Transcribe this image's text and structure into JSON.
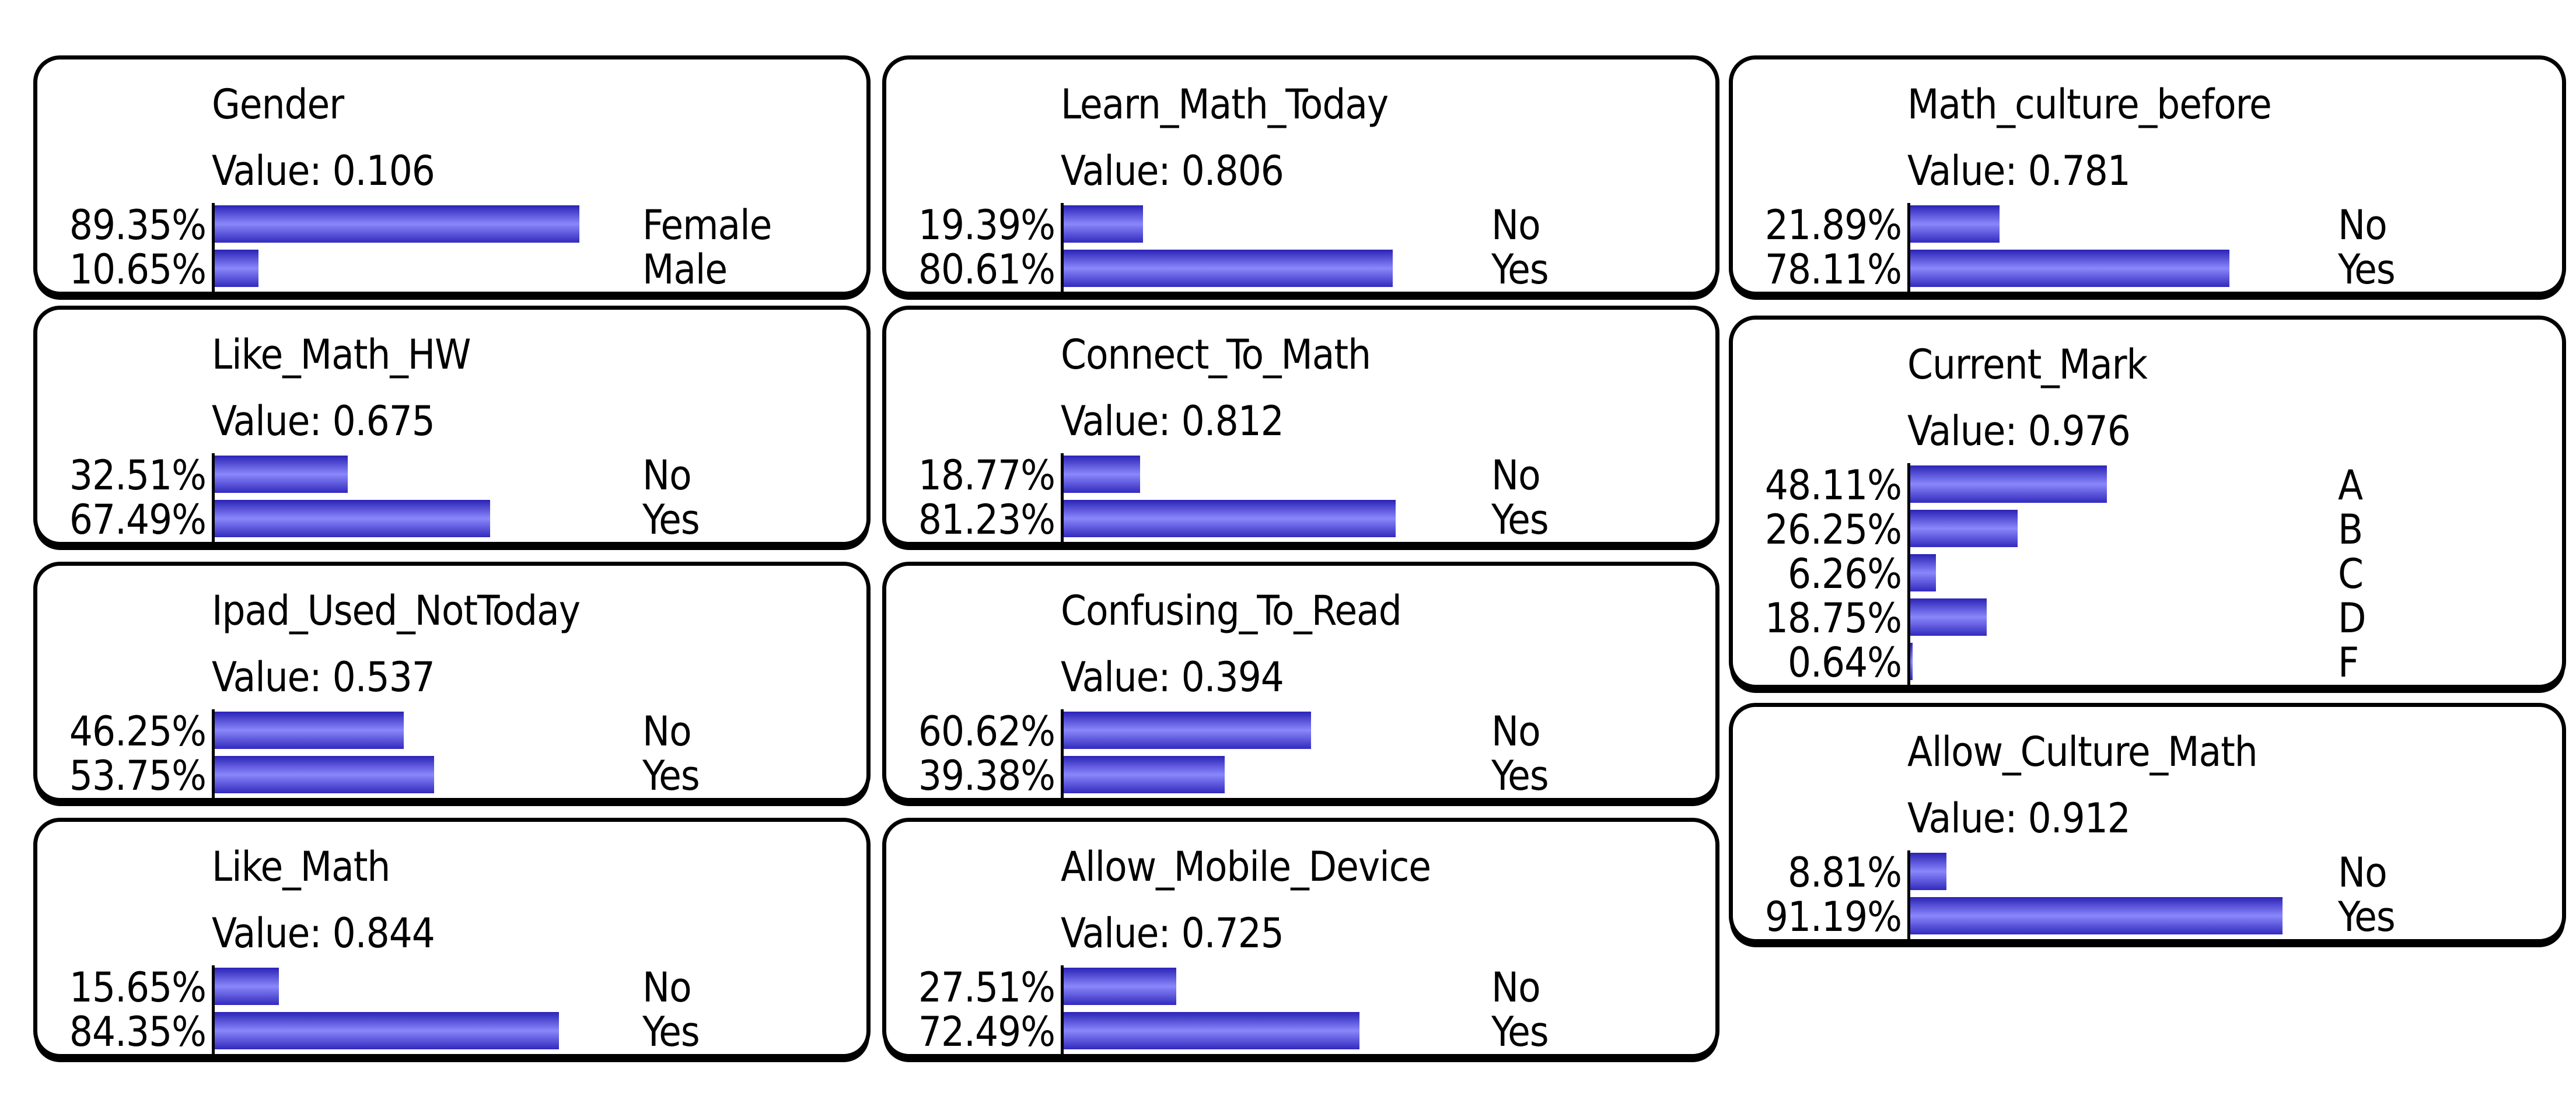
{
  "colors": {
    "bar_gradient_top": "#2b23b6",
    "bar_gradient_middle": "#8987fb",
    "bar_gradient_bottom": "#322abd",
    "panel_border": "#000000",
    "background": "#ffffff",
    "text": "#000000"
  },
  "labels": {
    "value_prefix": "Value: "
  },
  "chart_data": [
    {
      "type": "bar",
      "orientation": "horizontal",
      "grid": false,
      "column": 0,
      "title": "Gender",
      "value": 0.106,
      "value_display": "Value: 0.106",
      "categories": [
        "Female",
        "Male"
      ],
      "values": [
        89.35,
        10.65
      ],
      "values_display": [
        "89.35%",
        "10.65%"
      ],
      "unit": "%",
      "xlim": [
        0,
        100
      ]
    },
    {
      "type": "bar",
      "orientation": "horizontal",
      "grid": false,
      "column": 0,
      "title": "Like_Math_HW",
      "value": 0.675,
      "value_display": "Value: 0.675",
      "categories": [
        "No",
        "Yes"
      ],
      "values": [
        32.51,
        67.49
      ],
      "values_display": [
        "32.51%",
        "67.49%"
      ],
      "unit": "%",
      "xlim": [
        0,
        100
      ]
    },
    {
      "type": "bar",
      "orientation": "horizontal",
      "grid": false,
      "column": 0,
      "title": "Ipad_Used_NotToday",
      "value": 0.537,
      "value_display": "Value: 0.537",
      "categories": [
        "No",
        "Yes"
      ],
      "values": [
        46.25,
        53.75
      ],
      "values_display": [
        "46.25%",
        "53.75%"
      ],
      "unit": "%",
      "xlim": [
        0,
        100
      ]
    },
    {
      "type": "bar",
      "orientation": "horizontal",
      "grid": false,
      "column": 0,
      "title": "Like_Math",
      "value": 0.844,
      "value_display": "Value: 0.844",
      "categories": [
        "No",
        "Yes"
      ],
      "values": [
        15.65,
        84.35
      ],
      "values_display": [
        "15.65%",
        "84.35%"
      ],
      "unit": "%",
      "xlim": [
        0,
        100
      ]
    },
    {
      "type": "bar",
      "orientation": "horizontal",
      "grid": false,
      "column": 1,
      "title": "Learn_Math_Today",
      "value": 0.806,
      "value_display": "Value: 0.806",
      "categories": [
        "No",
        "Yes"
      ],
      "values": [
        19.39,
        80.61
      ],
      "values_display": [
        "19.39%",
        "80.61%"
      ],
      "unit": "%",
      "xlim": [
        0,
        100
      ]
    },
    {
      "type": "bar",
      "orientation": "horizontal",
      "grid": false,
      "column": 1,
      "title": "Connect_To_Math",
      "value": 0.812,
      "value_display": "Value: 0.812",
      "categories": [
        "No",
        "Yes"
      ],
      "values": [
        18.77,
        81.23
      ],
      "values_display": [
        "18.77%",
        "81.23%"
      ],
      "unit": "%",
      "xlim": [
        0,
        100
      ]
    },
    {
      "type": "bar",
      "orientation": "horizontal",
      "grid": false,
      "column": 1,
      "title": "Confusing_To_Read",
      "value": 0.394,
      "value_display": "Value: 0.394",
      "categories": [
        "No",
        "Yes"
      ],
      "values": [
        60.62,
        39.38
      ],
      "values_display": [
        "60.62%",
        "39.38%"
      ],
      "unit": "%",
      "xlim": [
        0,
        100
      ]
    },
    {
      "type": "bar",
      "orientation": "horizontal",
      "grid": false,
      "column": 1,
      "title": "Allow_Mobile_Device",
      "value": 0.725,
      "value_display": "Value: 0.725",
      "categories": [
        "No",
        "Yes"
      ],
      "values": [
        27.51,
        72.49
      ],
      "values_display": [
        "27.51%",
        "72.49%"
      ],
      "unit": "%",
      "xlim": [
        0,
        100
      ]
    },
    {
      "type": "bar",
      "orientation": "horizontal",
      "grid": false,
      "column": 2,
      "title": "Math_culture_before",
      "value": 0.781,
      "value_display": "Value: 0.781",
      "categories": [
        "No",
        "Yes"
      ],
      "values": [
        21.89,
        78.11
      ],
      "values_display": [
        "21.89%",
        "78.11%"
      ],
      "unit": "%",
      "xlim": [
        0,
        100
      ]
    },
    {
      "type": "bar",
      "orientation": "horizontal",
      "grid": false,
      "column": 2,
      "title": "Current_Mark",
      "value": 0.976,
      "value_display": "Value: 0.976",
      "categories": [
        "A",
        "B",
        "C",
        "D",
        "F"
      ],
      "values": [
        48.11,
        26.25,
        6.26,
        18.75,
        0.64
      ],
      "values_display": [
        "48.11%",
        "26.25%",
        "6.26%",
        "18.75%",
        "0.64%"
      ],
      "unit": "%",
      "xlim": [
        0,
        100
      ]
    },
    {
      "type": "bar",
      "orientation": "horizontal",
      "grid": false,
      "column": 2,
      "title": "Allow_Culture_Math",
      "value": 0.912,
      "value_display": "Value: 0.912",
      "categories": [
        "No",
        "Yes"
      ],
      "values": [
        8.81,
        91.19
      ],
      "values_display": [
        "8.81%",
        "91.19%"
      ],
      "unit": "%",
      "xlim": [
        0,
        100
      ]
    }
  ]
}
